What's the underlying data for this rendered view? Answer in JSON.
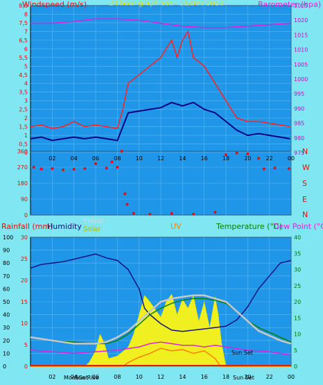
{
  "header": {
    "title": "24 hour graph Sat - 11/Dec 2010",
    "left_label": "Windspeed (m/s)",
    "right_label": "Barometer (hpa)"
  },
  "direction_letters": [
    "N",
    "W",
    "S",
    "E",
    "N"
  ],
  "bottom_header": {
    "rain": "Rainfall (mm)",
    "humidity": "Humidity",
    "thsw": "THSW",
    "solar": "Solar",
    "uv": "UV",
    "temperature": "Temperature (°C)",
    "dewpoint": "Dew Point (°C)"
  },
  "annotations": {
    "moonset": "MoonSet",
    "sunrise": "Sun Rise",
    "sunset_bottom": "Sun Set",
    "sunset_plot": "Sun Set"
  },
  "colors": {
    "background": "#7fe6f2",
    "plot_bg": "#2096e8",
    "wind_gust": "#ff2020",
    "wind_avg": "#000080",
    "barometer": "#e020e0",
    "direction": "#e01010",
    "humidity": "#101080",
    "temperature": "#008000",
    "dewpoint": "#e020e0",
    "thsw": "#c8c8c8",
    "solar": "#f0f020",
    "uv": "#ff8000",
    "rain": "#e02000",
    "title": "#e0e000"
  },
  "chart_data": [
    {
      "type": "line",
      "title": "24 hour graph Sat - 11/Dec 2010",
      "x_ticks": [
        "02",
        "04",
        "06",
        "08",
        "10",
        "12",
        "14",
        "16",
        "18",
        "20",
        "22",
        "00"
      ],
      "xlim_hours": [
        0,
        24
      ],
      "left_axis": {
        "label": "Windspeed (m/s)",
        "ylim": [
          0,
          8.5
        ],
        "ticks": [
          "0",
          "0,5",
          "1",
          "1,5",
          "2",
          "2,5",
          "3",
          "3,5",
          "4",
          "4,5",
          "5",
          "5,5",
          "6",
          "6,5",
          "7",
          "7,5",
          "8",
          "8,5"
        ]
      },
      "right_axis": {
        "label": "Barometer (hpa)",
        "ylim": [
          975,
          1025
        ],
        "ticks": [
          "975",
          "980",
          "985",
          "990",
          "995",
          "1000",
          "1005",
          "1010",
          "1015",
          "1020",
          "1025"
        ]
      },
      "series": [
        {
          "axis": "left",
          "style": "gust",
          "x": [
            0,
            1,
            2,
            3,
            4,
            5,
            6,
            7,
            8,
            8.5,
            9,
            10,
            11,
            12,
            12.5,
            13,
            13.5,
            14,
            14.5,
            15,
            16,
            17,
            18,
            19,
            20,
            21,
            22,
            23,
            23.9
          ],
          "values": [
            1.5,
            1.6,
            1.4,
            1.5,
            1.8,
            1.5,
            1.6,
            1.5,
            1.4,
            2.5,
            4,
            4.5,
            5,
            5.5,
            6,
            6.5,
            5.5,
            6.5,
            7,
            5.5,
            5,
            4,
            3,
            2,
            1.8,
            1.8,
            1.7,
            1.6,
            1.5
          ]
        },
        {
          "axis": "left",
          "style": "average",
          "x": [
            0,
            1,
            2,
            3,
            4,
            5,
            6,
            7,
            8,
            8.5,
            9,
            10,
            11,
            12,
            13,
            14,
            15,
            16,
            17,
            18,
            19,
            20,
            21,
            22,
            23,
            23.9
          ],
          "values": [
            0.8,
            0.9,
            0.7,
            0.8,
            0.9,
            0.8,
            0.9,
            0.8,
            0.7,
            1.5,
            2.3,
            2.4,
            2.5,
            2.6,
            2.9,
            2.7,
            2.9,
            2.5,
            2.3,
            1.8,
            1.3,
            1,
            1.1,
            1,
            0.9,
            0.8
          ]
        },
        {
          "axis": "right",
          "style": "barometer",
          "x": [
            0,
            2,
            4,
            6,
            8,
            10,
            12,
            14,
            16,
            18,
            20,
            22,
            24
          ],
          "values": [
            1019,
            1019,
            1019.5,
            1020.5,
            1020.5,
            1020,
            1019,
            1018,
            1017.5,
            1017.5,
            1018,
            1018.5,
            1019
          ]
        }
      ]
    },
    {
      "type": "scatter",
      "title": "",
      "xlim_hours": [
        0,
        24
      ],
      "ylim": [
        0,
        360
      ],
      "y_ticks": [
        "0",
        "90",
        "180",
        "270",
        "360"
      ],
      "points": [
        {
          "x": 0.3,
          "y": 270
        },
        {
          "x": 1,
          "y": 260
        },
        {
          "x": 2,
          "y": 262
        },
        {
          "x": 3,
          "y": 255
        },
        {
          "x": 4,
          "y": 258
        },
        {
          "x": 5,
          "y": 262
        },
        {
          "x": 6,
          "y": 290
        },
        {
          "x": 7,
          "y": 265
        },
        {
          "x": 7.5,
          "y": 300
        },
        {
          "x": 8,
          "y": 270
        },
        {
          "x": 8.4,
          "y": 360
        },
        {
          "x": 8.7,
          "y": 120
        },
        {
          "x": 8.9,
          "y": 60
        },
        {
          "x": 9.5,
          "y": 10
        },
        {
          "x": 11,
          "y": 5
        },
        {
          "x": 13,
          "y": 10
        },
        {
          "x": 15,
          "y": 5
        },
        {
          "x": 17,
          "y": 15
        },
        {
          "x": 18,
          "y": 340
        },
        {
          "x": 19,
          "y": 350
        },
        {
          "x": 20,
          "y": 345
        },
        {
          "x": 21,
          "y": 320
        },
        {
          "x": 21.5,
          "y": 260
        },
        {
          "x": 22.5,
          "y": 265
        },
        {
          "x": 23.8,
          "y": 262
        }
      ]
    },
    {
      "type": "line",
      "title": "",
      "x_ticks": [
        "02",
        "04",
        "06",
        "08",
        "10",
        "12",
        "14",
        "16",
        "18",
        "20",
        "22",
        "00"
      ],
      "xlim_hours": [
        0,
        24
      ],
      "rain_axis": {
        "label": "Rainfall (mm)",
        "ylim": [
          0,
          30
        ],
        "ticks": [
          "0",
          "5",
          "10",
          "15",
          "20",
          "25",
          "30"
        ]
      },
      "humidity_axis": {
        "label": "Humidity",
        "ylim": [
          0,
          100
        ],
        "ticks": [
          "0",
          "10",
          "20",
          "30",
          "40",
          "50",
          "60",
          "70",
          "80",
          "90",
          "100"
        ]
      },
      "temperature_axis": {
        "label": "Temperature (°C)",
        "ylim": [
          0,
          40
        ],
        "ticks": [
          "0",
          "5",
          "10",
          "15",
          "20",
          "25",
          "30",
          "35",
          "40"
        ]
      },
      "series": [
        {
          "name": "Humidity",
          "axis": "humidity",
          "style": "humidity",
          "x": [
            0,
            1,
            2,
            3,
            4,
            5,
            6,
            7,
            8,
            9,
            10,
            10.5,
            11,
            12,
            13,
            14,
            15,
            16,
            17,
            18,
            19,
            20,
            21,
            22,
            23,
            24
          ],
          "values": [
            76,
            79,
            80,
            81,
            83,
            85,
            87,
            84,
            82,
            75,
            60,
            45,
            40,
            33,
            28,
            27,
            28,
            29,
            30,
            31,
            36,
            46,
            60,
            70,
            80,
            82
          ]
        },
        {
          "name": "Temperature (°C)",
          "axis": "temperature",
          "style": "temperature",
          "x": [
            0,
            2,
            4,
            6,
            7,
            8,
            9,
            10,
            11,
            12,
            13,
            14,
            15,
            16,
            17,
            18,
            19,
            20,
            21,
            22,
            23,
            24
          ],
          "values": [
            9,
            8,
            7.5,
            7,
            7,
            8,
            10,
            13,
            16,
            18,
            19.5,
            20.5,
            21,
            21,
            20.5,
            19.5,
            17,
            14,
            12,
            10.5,
            9,
            7.5
          ]
        },
        {
          "name": "THSW",
          "axis": "temperature",
          "style": "thsw",
          "x": [
            0,
            2,
            4,
            6,
            7,
            8,
            9,
            10,
            11,
            12,
            13,
            14,
            15,
            16,
            17,
            18,
            19,
            20,
            21,
            22,
            23,
            24
          ],
          "values": [
            9,
            8,
            7,
            7,
            7.5,
            9,
            11,
            14,
            17,
            20,
            21,
            21.5,
            22,
            22,
            21,
            20,
            17,
            14,
            11,
            9.5,
            8,
            7
          ]
        },
        {
          "name": "Dew Point (°C)",
          "axis": "temperature",
          "style": "dewpoint",
          "x": [
            0,
            2,
            4,
            6,
            8,
            10,
            11,
            12,
            13,
            14,
            15,
            16,
            17,
            18,
            19,
            20,
            22,
            24
          ],
          "values": [
            5,
            4.5,
            4,
            4.5,
            5,
            6,
            7,
            7.5,
            7,
            6.5,
            6.5,
            6,
            6.5,
            6,
            5.5,
            5,
            4.5,
            3.5
          ]
        },
        {
          "name": "Solar",
          "axis": "humidity",
          "style": "solar",
          "x": [
            0,
            5,
            5.4,
            6,
            6.4,
            6.8,
            7.2,
            8,
            9,
            9.5,
            10,
            10.5,
            11,
            11.5,
            12,
            12.5,
            13,
            13.5,
            14,
            14.5,
            15,
            15.5,
            16,
            16.5,
            17,
            17.3,
            17.6,
            18,
            24
          ],
          "values": [
            0,
            0,
            3,
            12,
            25,
            18,
            6,
            8,
            15,
            25,
            40,
            55,
            50,
            44,
            38,
            50,
            56,
            40,
            52,
            45,
            55,
            35,
            50,
            30,
            54,
            40,
            18,
            0,
            0
          ]
        },
        {
          "name": "UV",
          "axis": "humidity",
          "style": "uv",
          "x": [
            0,
            8.5,
            9,
            10,
            11,
            12,
            13,
            14,
            15,
            16,
            17,
            17.5,
            24
          ],
          "values": [
            0,
            0,
            3,
            7,
            10,
            14,
            12,
            13,
            10,
            12,
            6,
            0,
            0
          ]
        }
      ],
      "rain_total": 0
    }
  ]
}
